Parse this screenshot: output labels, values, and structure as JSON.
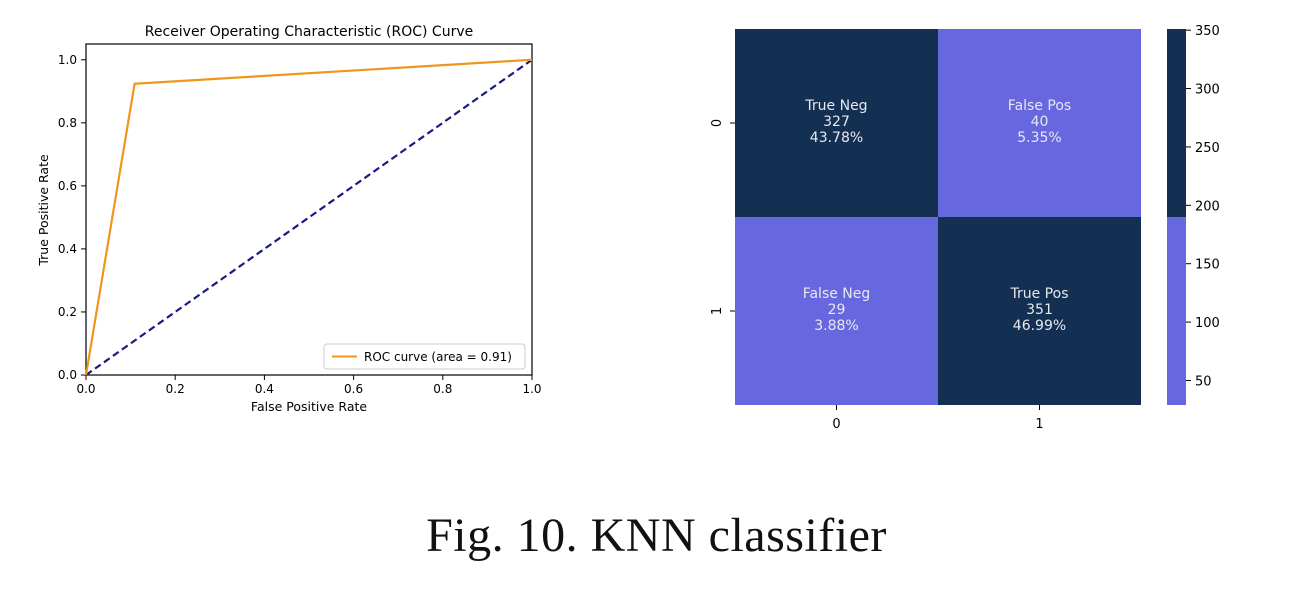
{
  "chart_data": [
    {
      "type": "line",
      "title": "Receiver Operating Characteristic (ROC) Curve",
      "xlabel": "False Positive Rate",
      "ylabel": "True Positive Rate",
      "xlim": [
        0.0,
        1.0
      ],
      "ylim": [
        0.0,
        1.05
      ],
      "xticks": [
        "0.0",
        "0.2",
        "0.4",
        "0.6",
        "0.8",
        "1.0"
      ],
      "yticks": [
        "0.0",
        "0.2",
        "0.4",
        "0.6",
        "0.8",
        "1.0"
      ],
      "legend_position": "bottom-right",
      "series": [
        {
          "name": "ROC curve (area = 0.91)",
          "color": "#f0961e",
          "style": "solid",
          "x": [
            0.0,
            0.109,
            1.0
          ],
          "y": [
            0.0,
            0.924,
            1.0
          ]
        },
        {
          "color": "#1a1a82",
          "style": "dashed",
          "x": [
            0.0,
            1.0
          ],
          "y": [
            0.0,
            1.0
          ]
        }
      ]
    },
    {
      "type": "heatmap",
      "x_categories": [
        "0",
        "1"
      ],
      "y_categories": [
        "0",
        "1"
      ],
      "cells": [
        [
          {
            "label": "True Neg",
            "count": "327",
            "percent": "43.78%",
            "value": 327
          },
          {
            "label": "False Pos",
            "count": "40",
            "percent": "5.35%",
            "value": 40
          }
        ],
        [
          {
            "label": "False Neg",
            "count": "29",
            "percent": "3.88%",
            "value": 29
          },
          {
            "label": "True Pos",
            "count": "351",
            "percent": "46.99%",
            "value": 351
          }
        ]
      ],
      "colorbar": {
        "ticks": [
          "50",
          "100",
          "150",
          "200",
          "250",
          "300",
          "350"
        ],
        "range": [
          29,
          351
        ],
        "threshold": 190,
        "low_color": "#6767e0",
        "high_color": "#132f52"
      },
      "text_color": "#e8e8f0"
    }
  ],
  "caption": "Fig. 10.   KNN classifier"
}
